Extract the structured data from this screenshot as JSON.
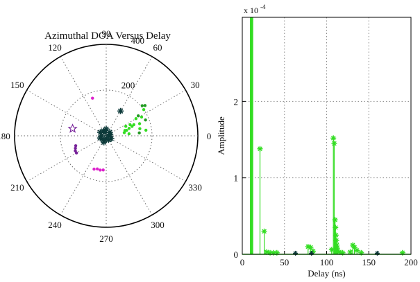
{
  "chart_data": [
    {
      "type": "scatter",
      "subtype": "polar",
      "title": "Azimuthal DOA Versus Delay",
      "angle_ticks": [
        "0",
        "30",
        "60",
        "90",
        "120",
        "150",
        "180",
        "210",
        "240",
        "270",
        "300",
        "330"
      ],
      "radial_ticks": [
        {
          "label": "200",
          "value": 200
        },
        {
          "label": "400",
          "value": 400
        }
      ],
      "radial_max": 400,
      "grid": true,
      "colors": {
        "light": "#33dd22",
        "dark_green": "#229922",
        "dark": "#0d3a3a",
        "magenta": "#dd22cc",
        "purple": "#772299"
      },
      "series": [
        {
          "color": "dark",
          "marker": "star",
          "points": [
            {
              "angle": 90,
              "r": 30
            },
            {
              "angle": 120,
              "r": 25
            },
            {
              "angle": 150,
              "r": 30
            },
            {
              "angle": 180,
              "r": 20
            },
            {
              "angle": 200,
              "r": 28
            },
            {
              "angle": 230,
              "r": 22
            },
            {
              "angle": 270,
              "r": 12
            },
            {
              "angle": 300,
              "r": 20
            },
            {
              "angle": 330,
              "r": 25
            },
            {
              "angle": 45,
              "r": 22
            },
            {
              "angle": 15,
              "r": 18
            },
            {
              "angle": 110,
              "r": 15
            },
            {
              "angle": 250,
              "r": 30
            },
            {
              "angle": 0,
              "r": 10
            },
            {
              "angle": 60,
              "r": 125
            }
          ]
        },
        {
          "color": "light",
          "marker": "dot",
          "points": [
            {
              "angle": 20,
              "r": 120
            },
            {
              "angle": 18,
              "r": 105
            },
            {
              "angle": 15,
              "r": 92
            },
            {
              "angle": 25,
              "r": 115
            },
            {
              "angle": 22,
              "r": 130
            },
            {
              "angle": 30,
              "r": 150
            },
            {
              "angle": 20,
              "r": 155
            },
            {
              "angle": 28,
              "r": 175
            },
            {
              "angle": 35,
              "r": 200
            },
            {
              "angle": 10,
              "r": 80
            },
            {
              "angle": 12,
              "r": 150
            },
            {
              "angle": 5,
              "r": 100
            },
            {
              "angle": 8,
              "r": 175
            },
            {
              "angle": 16,
              "r": 85
            },
            {
              "angle": 26,
              "r": 95
            }
          ]
        },
        {
          "color": "dark_green",
          "marker": "dot",
          "points": [
            {
              "angle": 40,
              "r": 205
            },
            {
              "angle": 38,
              "r": 215
            },
            {
              "angle": 22,
              "r": 185
            },
            {
              "angle": 5,
              "r": 145
            },
            {
              "angle": 32,
              "r": 165
            }
          ]
        },
        {
          "color": "magenta",
          "marker": "dot",
          "points": [
            {
              "angle": 255,
              "r": 150
            },
            {
              "angle": 260,
              "r": 152
            },
            {
              "angle": 265,
              "r": 150
            },
            {
              "angle": 250,
              "r": 155
            },
            {
              "angle": 110,
              "r": 175
            }
          ]
        },
        {
          "color": "purple",
          "marker": "dot",
          "points": [
            {
              "angle": 198,
              "r": 140
            },
            {
              "angle": 202,
              "r": 145
            },
            {
              "angle": 206,
              "r": 150
            },
            {
              "angle": 210,
              "r": 150
            }
          ]
        },
        {
          "color": "purple",
          "marker": "hollow-star",
          "points": [
            {
              "angle": 168,
              "r": 150
            }
          ]
        }
      ]
    },
    {
      "type": "bar",
      "subtype": "stem",
      "xlabel": "Delay (ns)",
      "ylabel": "Amplitude",
      "exponent_label": "x 10",
      "exponent_power": "-4",
      "xlim": [
        0,
        200
      ],
      "ylim": [
        0,
        0.00031
      ],
      "xticks": [
        {
          "label": "0",
          "value": 0
        },
        {
          "label": "50",
          "value": 50
        },
        {
          "label": "100",
          "value": 100
        },
        {
          "label": "150",
          "value": 150
        },
        {
          "label": "200",
          "value": 200
        }
      ],
      "yticks": [
        {
          "label": "0",
          "value": 0
        },
        {
          "label": "1",
          "value": 0.0001
        },
        {
          "label": "2",
          "value": 0.0002
        }
      ],
      "grid": true,
      "colors": {
        "stem": "#33dd22",
        "dark": "#0d3a3a"
      },
      "stems": [
        {
          "x": 10,
          "y": 0.00031,
          "marker": false
        },
        {
          "x": 11,
          "y": 0.00031,
          "marker": false
        },
        {
          "x": 12,
          "y": 0.00031,
          "marker": false
        },
        {
          "x": 21,
          "y": 0.000138,
          "marker": true
        },
        {
          "x": 26,
          "y": 3e-05,
          "marker": true
        },
        {
          "x": 29,
          "y": 3e-06,
          "marker": true
        },
        {
          "x": 33,
          "y": 2e-06,
          "marker": true
        },
        {
          "x": 37,
          "y": 2e-06,
          "marker": true
        },
        {
          "x": 41,
          "y": 2e-06,
          "marker": true
        },
        {
          "x": 78,
          "y": 1e-05,
          "marker": true
        },
        {
          "x": 81,
          "y": 9e-06,
          "marker": true
        },
        {
          "x": 84,
          "y": 4e-06,
          "marker": true
        },
        {
          "x": 108,
          "y": 0.000152,
          "marker": true
        },
        {
          "x": 109,
          "y": 0.000145,
          "marker": true
        },
        {
          "x": 110,
          "y": 4.5e-05,
          "marker": true
        },
        {
          "x": 110.5,
          "y": 3.5e-05,
          "marker": true
        },
        {
          "x": 111,
          "y": 2.5e-05,
          "marker": true
        },
        {
          "x": 111.5,
          "y": 1.8e-05,
          "marker": true
        },
        {
          "x": 112,
          "y": 1.2e-05,
          "marker": true
        },
        {
          "x": 112.5,
          "y": 8e-06,
          "marker": true
        },
        {
          "x": 113,
          "y": 4e-06,
          "marker": true
        },
        {
          "x": 106,
          "y": 6e-06,
          "marker": true
        },
        {
          "x": 115,
          "y": 3e-06,
          "marker": true
        },
        {
          "x": 119,
          "y": 2e-06,
          "marker": true
        },
        {
          "x": 131,
          "y": 1.2e-05,
          "marker": true
        },
        {
          "x": 133,
          "y": 9e-06,
          "marker": true
        },
        {
          "x": 136,
          "y": 5e-06,
          "marker": true
        },
        {
          "x": 128,
          "y": 3e-06,
          "marker": true
        },
        {
          "x": 141,
          "y": 2e-06,
          "marker": true
        },
        {
          "x": 190,
          "y": 2e-06,
          "marker": true
        }
      ],
      "dark_markers": [
        {
          "x": 63,
          "y": 5e-07
        },
        {
          "x": 82,
          "y": 5e-07
        },
        {
          "x": 160,
          "y": 5e-07
        }
      ]
    }
  ]
}
